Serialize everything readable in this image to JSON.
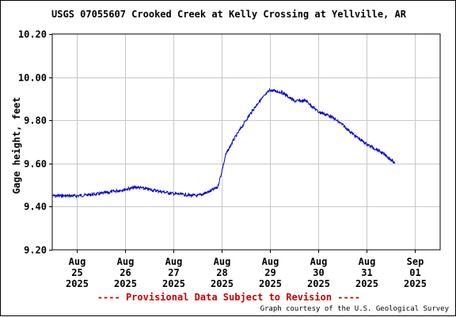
{
  "chart_data": {
    "type": "line",
    "title": "USGS 07055607 Crooked Creek at Kelly Crossing at Yellville, AR",
    "ylabel": "Gage height, feet",
    "xlabel": "",
    "ylim": [
      9.2,
      10.2
    ],
    "y_ticks": [
      "9.20",
      "9.40",
      "9.60",
      "9.80",
      "10.00",
      "10.20"
    ],
    "x_ticks": [
      {
        "month": "Aug",
        "day": "25",
        "year": "2025"
      },
      {
        "month": "Aug",
        "day": "26",
        "year": "2025"
      },
      {
        "month": "Aug",
        "day": "27",
        "year": "2025"
      },
      {
        "month": "Aug",
        "day": "28",
        "year": "2025"
      },
      {
        "month": "Aug",
        "day": "29",
        "year": "2025"
      },
      {
        "month": "Aug",
        "day": "30",
        "year": "2025"
      },
      {
        "month": "Aug",
        "day": "31",
        "year": "2025"
      },
      {
        "month": "Sep",
        "day": "01",
        "year": "2025"
      }
    ],
    "grid": true,
    "series": [
      {
        "color": "#0000cc",
        "points": [
          [
            "2025-08-24 12:00",
            9.45
          ],
          [
            "2025-08-25 00:00",
            9.45
          ],
          [
            "2025-08-25 12:00",
            9.46
          ],
          [
            "2025-08-26 00:00",
            9.48
          ],
          [
            "2025-08-26 06:00",
            9.49
          ],
          [
            "2025-08-26 12:00",
            9.48
          ],
          [
            "2025-08-27 00:00",
            9.46
          ],
          [
            "2025-08-27 12:00",
            9.45
          ],
          [
            "2025-08-27 18:00",
            9.47
          ],
          [
            "2025-08-27 22:00",
            9.49
          ],
          [
            "2025-08-28 00:00",
            9.56
          ],
          [
            "2025-08-28 02:00",
            9.64
          ],
          [
            "2025-08-28 06:00",
            9.71
          ],
          [
            "2025-08-28 12:00",
            9.8
          ],
          [
            "2025-08-28 18:00",
            9.88
          ],
          [
            "2025-08-29 00:00",
            9.94
          ],
          [
            "2025-08-29 06:00",
            9.93
          ],
          [
            "2025-08-29 12:00",
            9.89
          ],
          [
            "2025-08-29 18:00",
            9.89
          ],
          [
            "2025-08-30 00:00",
            9.84
          ],
          [
            "2025-08-30 06:00",
            9.82
          ],
          [
            "2025-08-30 12:00",
            9.78
          ],
          [
            "2025-08-30 18:00",
            9.73
          ],
          [
            "2025-08-31 00:00",
            9.69
          ],
          [
            "2025-08-31 06:00",
            9.66
          ],
          [
            "2025-08-31 12:00",
            9.62
          ],
          [
            "2025-08-31 14:00",
            9.6
          ]
        ]
      }
    ]
  },
  "footer": {
    "provisional": "---- Provisional Data Subject to Revision ----",
    "provisional_color": "#cc0000",
    "courtesy": "Graph courtesy of the U.S. Geological Survey"
  }
}
